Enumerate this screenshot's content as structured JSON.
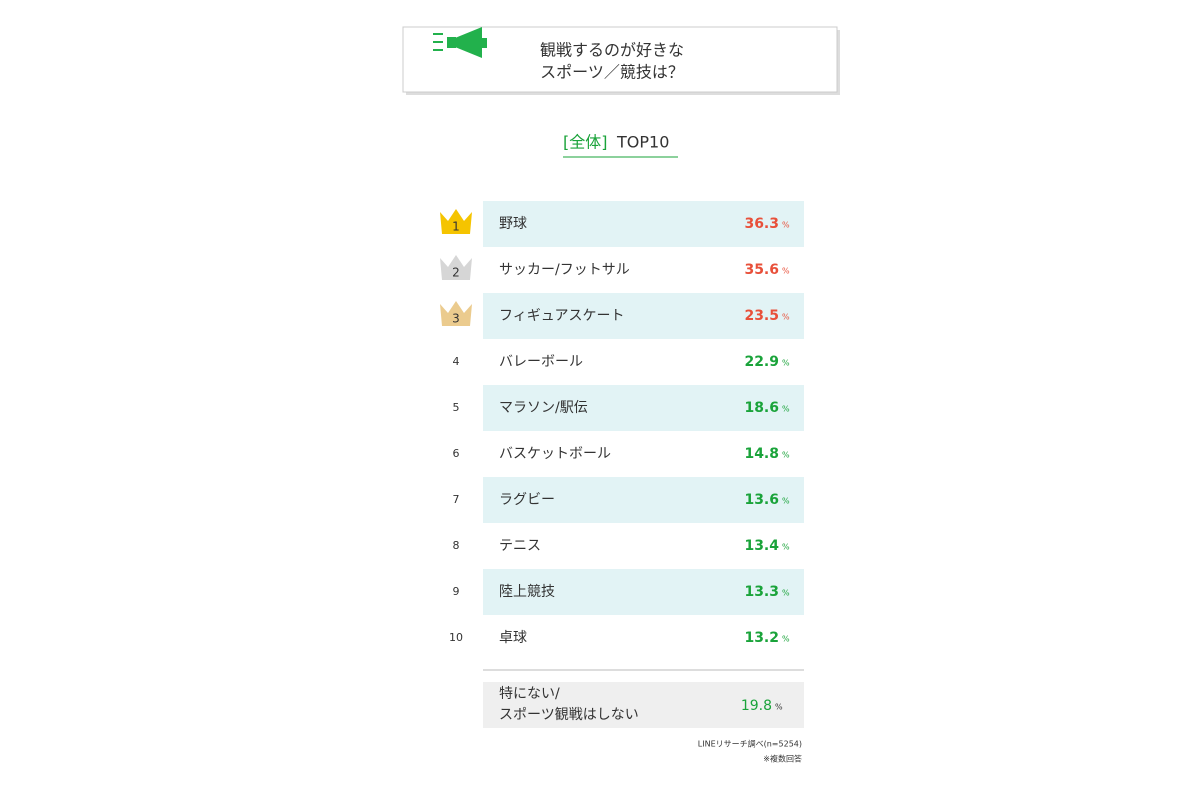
{
  "header": {
    "title_lines": [
      "観戦するのが好きな",
      "スポーツ／競技は？"
    ]
  },
  "subtitle": {
    "bracket": "[全体]",
    "text": "TOP10"
  },
  "unit": "%",
  "rows": [
    {
      "rank": 1,
      "label": "野球",
      "value": 36.3,
      "value_color": "#e8503a",
      "crown_color": "#f5c400",
      "shaded": true
    },
    {
      "rank": 2,
      "label": "サッカー/フットサル",
      "value": 35.6,
      "value_color": "#e8503a",
      "crown_color": "#d6d6d6",
      "shaded": false
    },
    {
      "rank": 3,
      "label": "フィギュアスケート",
      "value": 23.5,
      "value_color": "#e8503a",
      "crown_color": "#ebcb8e",
      "shaded": true
    },
    {
      "rank": 4,
      "label": "バレーボール",
      "value": 22.9,
      "value_color": "#1aa33a",
      "shaded": false
    },
    {
      "rank": 5,
      "label": "マラソン/駅伝",
      "value": 18.6,
      "value_color": "#1aa33a",
      "shaded": true
    },
    {
      "rank": 6,
      "label": "バスケットボール",
      "value": 14.8,
      "value_color": "#1aa33a",
      "shaded": false
    },
    {
      "rank": 7,
      "label": "ラグビー",
      "value": 13.6,
      "value_color": "#1aa33a",
      "shaded": true
    },
    {
      "rank": 8,
      "label": "テニス",
      "value": 13.4,
      "value_color": "#1aa33a",
      "shaded": false
    },
    {
      "rank": 9,
      "label": "陸上競技",
      "value": 13.3,
      "value_color": "#1aa33a",
      "shaded": true
    },
    {
      "rank": 10,
      "label": "卓球",
      "value": 13.2,
      "value_color": "#1aa33a",
      "shaded": false
    }
  ],
  "other": {
    "label_lines": [
      "特にない/",
      "スポーツ観戦はしない"
    ],
    "value": 19.8,
    "value_color": "#1aa33a"
  },
  "footer": {
    "source": "LINEリサーチ調べ(n=5254)",
    "note": "※複数回答"
  }
}
